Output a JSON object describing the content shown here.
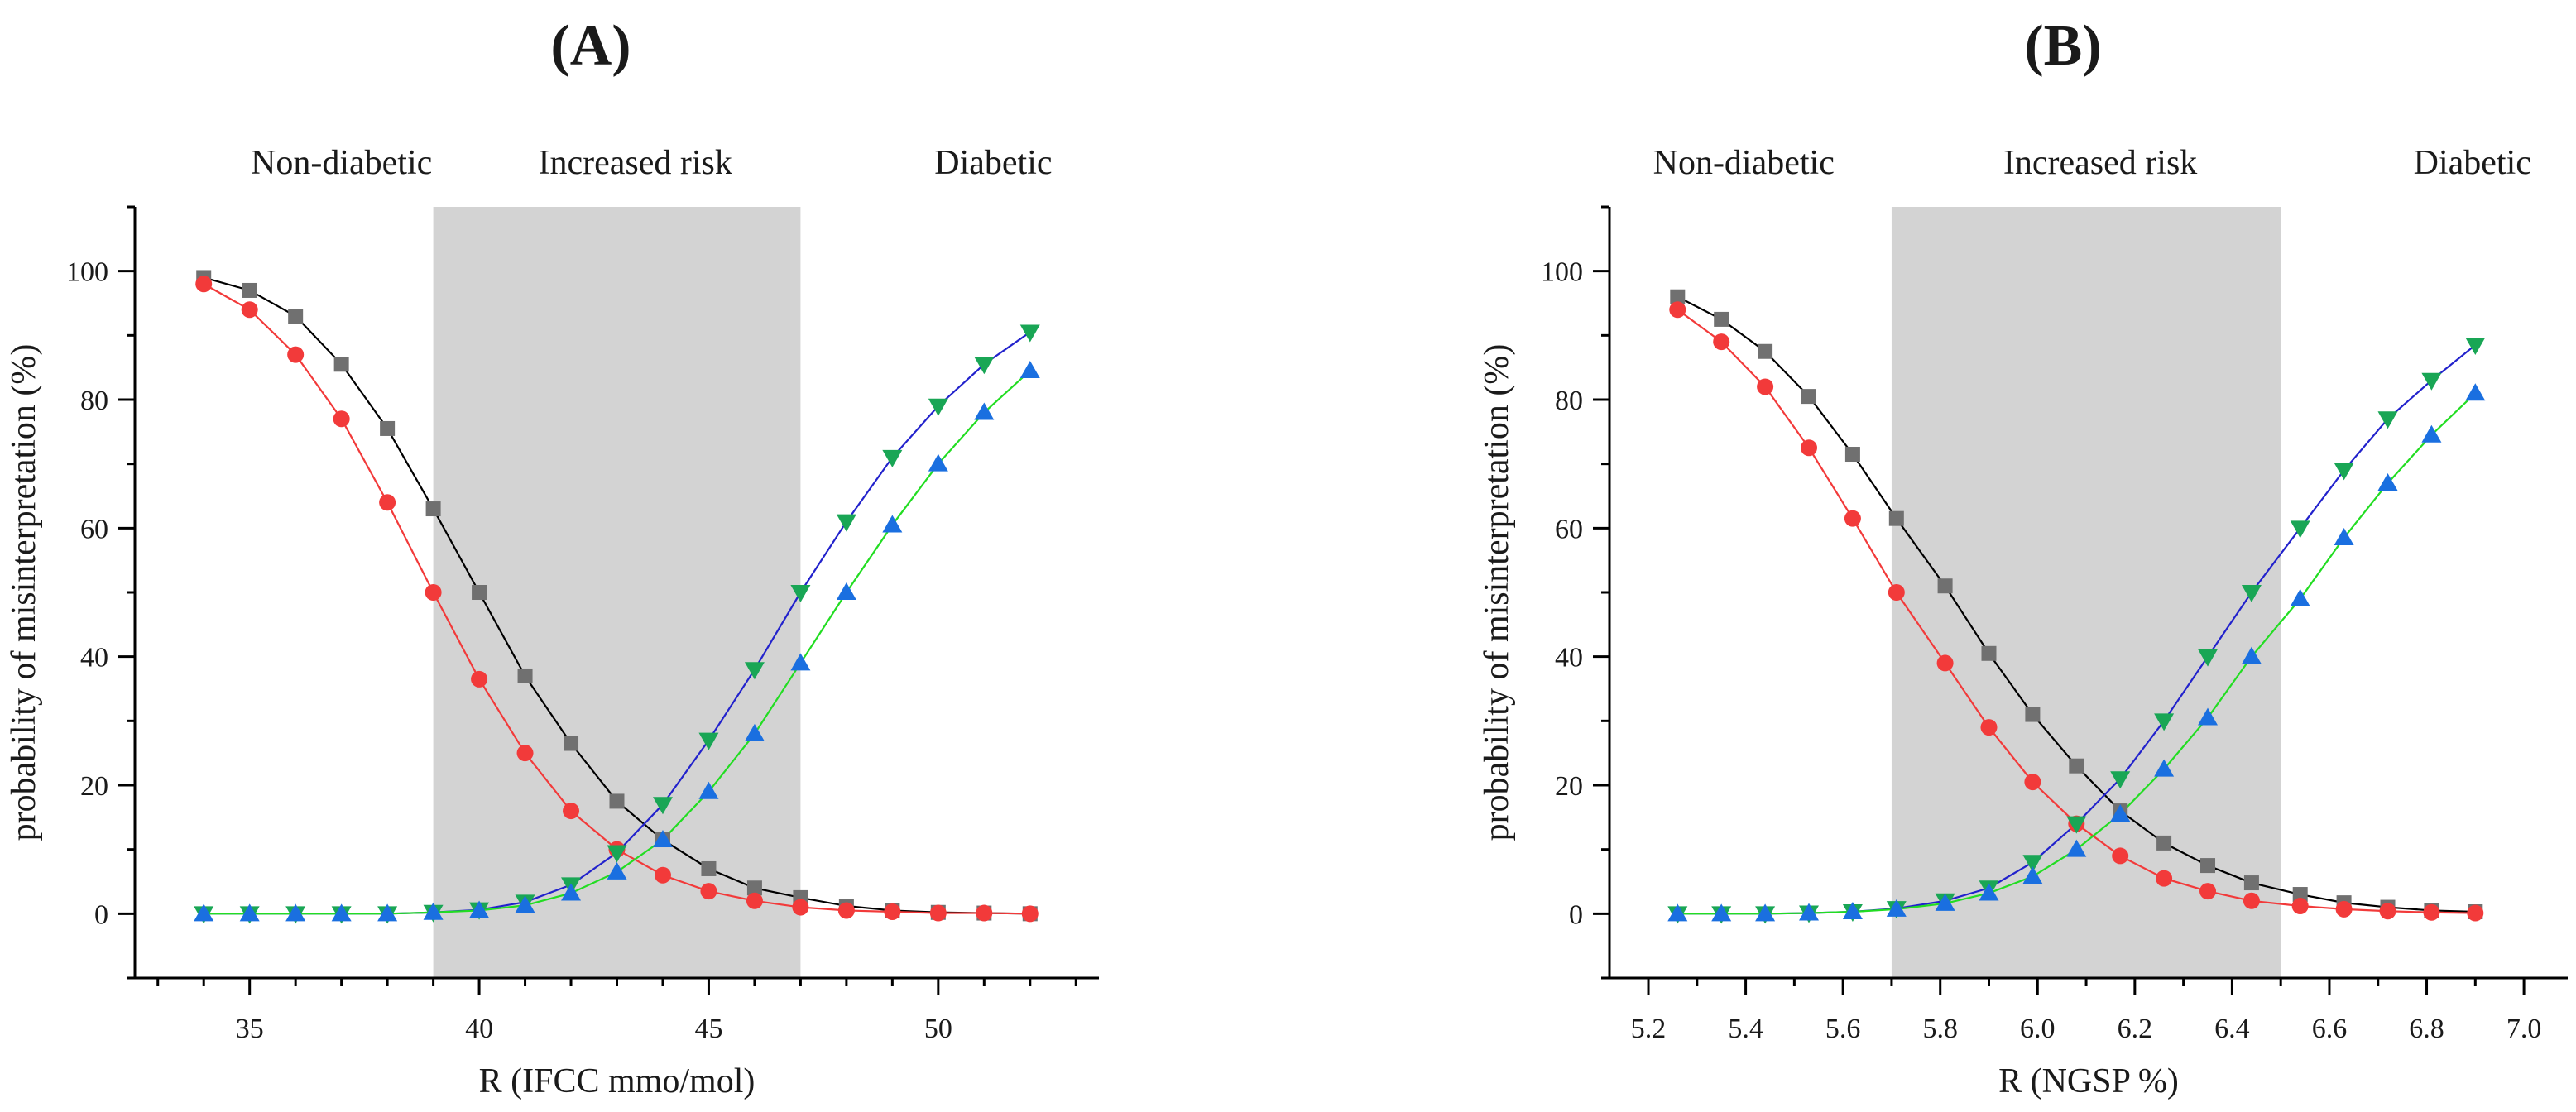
{
  "charts": [
    {
      "type": "line",
      "panel_label": "(A)",
      "title": "",
      "xlabel": "R (IFCC mmo/mol)",
      "ylabel": "probability of misinterpretation (%)",
      "xlim": [
        32.5,
        53.5
      ],
      "ylim": [
        -10,
        110
      ],
      "x_ticks": [
        35,
        40,
        45,
        50
      ],
      "x_tick_labels": [
        "35",
        "40",
        "45",
        "50"
      ],
      "x_minor_step": 1,
      "y_ticks": [
        0,
        20,
        40,
        60,
        80,
        100
      ],
      "y_tick_labels": [
        "0",
        "20",
        "40",
        "60",
        "80",
        "100"
      ],
      "region_labels": [
        "Non-diabetic",
        "Increased risk",
        "Diabetic"
      ],
      "region_centers": [
        37.0,
        43.4,
        51.2
      ],
      "shaded_range": [
        39,
        47
      ],
      "grid": false,
      "x": [
        34,
        35,
        36,
        37,
        38,
        39,
        40,
        41,
        42,
        43,
        44,
        45,
        46,
        47,
        48,
        49,
        50,
        51,
        52
      ],
      "series": [
        {
          "name": "black-square",
          "marker": "square",
          "marker_color": "#707070",
          "line_color": "#000000",
          "values": [
            99,
            97,
            93,
            85.5,
            75.5,
            63,
            50,
            37,
            26.5,
            17.5,
            11.5,
            7,
            4,
            2.5,
            1.2,
            0.5,
            0.2,
            0.1,
            0
          ]
        },
        {
          "name": "red-circle",
          "marker": "circle",
          "marker_color": "#f23a3a",
          "line_color": "#f23a3a",
          "values": [
            98,
            94,
            87,
            77,
            64,
            50,
            36.5,
            25,
            16,
            10,
            6,
            3.5,
            2,
            1,
            0.5,
            0.3,
            0.1,
            0.1,
            0
          ]
        },
        {
          "name": "green-triangle-down",
          "marker": "triangle-down",
          "marker_color": "#19a655",
          "line_color": "#2222cc",
          "values": [
            0,
            0,
            0,
            0,
            0,
            0.2,
            0.6,
            1.8,
            4.5,
            9.5,
            17,
            27,
            38,
            50,
            61,
            71,
            79,
            85.5,
            90.5
          ]
        },
        {
          "name": "blue-triangle-up",
          "marker": "triangle-up",
          "marker_color": "#1a6fe0",
          "line_color": "#22dd22",
          "values": [
            0,
            0,
            0,
            0,
            0,
            0.2,
            0.5,
            1.3,
            3.2,
            6.5,
            11.5,
            19,
            28,
            39,
            50,
            60.5,
            70,
            78,
            84.5
          ]
        }
      ]
    },
    {
      "type": "line",
      "panel_label": "(B)",
      "title": "",
      "xlabel": "R (NGSP %)",
      "ylabel": "probability of misinterpretation (%)",
      "xlim": [
        5.12,
        7.09
      ],
      "ylim": [
        -10,
        110
      ],
      "x_ticks": [
        5.2,
        5.4,
        5.6,
        5.8,
        6.0,
        6.2,
        6.4,
        6.6,
        6.8,
        7.0
      ],
      "x_tick_labels": [
        "5.2",
        "5.4",
        "5.6",
        "5.8",
        "6.0",
        "6.2",
        "6.4",
        "6.6",
        "6.8",
        "7.0"
      ],
      "x_minor_step": 0.1,
      "y_ticks": [
        0,
        20,
        40,
        60,
        80,
        100
      ],
      "y_tick_labels": [
        "0",
        "20",
        "40",
        "60",
        "80",
        "100"
      ],
      "region_labels": [
        "Non-diabetic",
        "Increased risk",
        "Diabetic"
      ],
      "region_centers": [
        5.396,
        6.129,
        6.894
      ],
      "shaded_range": [
        5.7,
        6.5
      ],
      "grid": false,
      "x": [
        5.26,
        5.35,
        5.44,
        5.53,
        5.62,
        5.71,
        5.81,
        5.9,
        5.99,
        6.08,
        6.17,
        6.26,
        6.35,
        6.44,
        6.54,
        6.63,
        6.72,
        6.81,
        6.9
      ],
      "series": [
        {
          "name": "black-square",
          "marker": "square",
          "marker_color": "#707070",
          "line_color": "#000000",
          "values": [
            96,
            92.5,
            87.5,
            80.5,
            71.5,
            61.5,
            51,
            40.5,
            31,
            23,
            16,
            11,
            7.5,
            4.8,
            3,
            1.7,
            1,
            0.5,
            0.3
          ]
        },
        {
          "name": "red-circle",
          "marker": "circle",
          "marker_color": "#f23a3a",
          "line_color": "#f23a3a",
          "values": [
            94,
            89,
            82,
            72.5,
            61.5,
            50,
            39,
            29,
            20.5,
            14,
            9,
            5.5,
            3.5,
            2,
            1.2,
            0.7,
            0.4,
            0.2,
            0.1
          ]
        },
        {
          "name": "green-triangle-down",
          "marker": "triangle-down",
          "marker_color": "#19a655",
          "line_color": "#2222cc",
          "values": [
            0,
            0,
            0,
            0.1,
            0.3,
            0.8,
            2,
            4,
            8,
            14,
            21,
            30,
            40,
            50,
            60,
            69,
            77,
            83,
            88.5
          ]
        },
        {
          "name": "blue-triangle-up",
          "marker": "triangle-up",
          "marker_color": "#1a6fe0",
          "line_color": "#22dd22",
          "values": [
            0,
            0,
            0,
            0.1,
            0.3,
            0.7,
            1.6,
            3.2,
            5.8,
            10,
            15.5,
            22.5,
            30.5,
            40,
            49,
            58.5,
            67,
            74.5,
            81
          ]
        }
      ]
    }
  ]
}
